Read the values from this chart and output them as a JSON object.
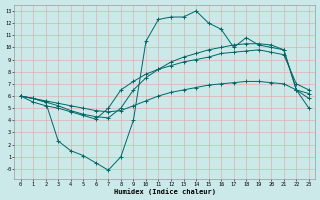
{
  "xlabel": "Humidex (Indice chaleur)",
  "background_color": "#cce9e9",
  "grid_color": "#e8a0a0",
  "line_color": "#006666",
  "xlim_min": -0.5,
  "xlim_max": 23.5,
  "ylim_min": -0.8,
  "ylim_max": 13.5,
  "xticks": [
    0,
    1,
    2,
    3,
    4,
    5,
    6,
    7,
    8,
    9,
    10,
    11,
    12,
    13,
    14,
    15,
    16,
    17,
    18,
    19,
    20,
    21,
    22,
    23
  ],
  "yticks": [
    0,
    1,
    2,
    3,
    4,
    5,
    6,
    7,
    8,
    9,
    10,
    11,
    12,
    13
  ],
  "ytick_labels": [
    "-0",
    "1",
    "2",
    "3",
    "4",
    "5",
    "6",
    "7",
    "8",
    "9",
    "10",
    "11",
    "12",
    "13"
  ],
  "line_dip_x": [
    0,
    1,
    2,
    3,
    4,
    5,
    6,
    7,
    8,
    9,
    10,
    11,
    12,
    13,
    14,
    15,
    16,
    17,
    18,
    19,
    20,
    21,
    22,
    23
  ],
  "line_dip_y": [
    6.0,
    5.8,
    5.5,
    2.3,
    1.5,
    1.1,
    0.5,
    -0.1,
    1.0,
    4.0,
    10.5,
    12.3,
    12.5,
    12.5,
    13.0,
    12.0,
    11.5,
    10.0,
    10.8,
    10.2,
    10.0,
    9.8,
    6.5,
    5.0
  ],
  "line_diag_x": [
    0,
    1,
    2,
    3,
    4,
    5,
    6,
    7,
    8,
    9,
    10,
    11,
    12,
    13,
    14,
    15,
    16,
    17,
    18,
    19,
    20,
    21,
    22,
    23
  ],
  "line_diag_y": [
    6.0,
    5.8,
    5.5,
    5.2,
    4.8,
    4.5,
    4.3,
    4.2,
    5.0,
    6.5,
    7.5,
    8.2,
    8.8,
    9.2,
    9.5,
    9.8,
    10.0,
    10.2,
    10.3,
    10.3,
    10.2,
    9.8,
    6.5,
    5.8
  ],
  "line_mid_x": [
    0,
    1,
    2,
    3,
    4,
    5,
    6,
    7,
    8,
    9,
    10,
    11,
    12,
    13,
    14,
    15,
    16,
    17,
    18,
    19,
    20,
    21,
    22,
    23
  ],
  "line_mid_y": [
    6.0,
    5.5,
    5.2,
    5.0,
    4.7,
    4.4,
    4.1,
    5.0,
    6.5,
    7.2,
    7.8,
    8.2,
    8.5,
    8.8,
    9.0,
    9.2,
    9.5,
    9.6,
    9.7,
    9.8,
    9.6,
    9.4,
    7.0,
    6.5
  ],
  "line_flat_x": [
    0,
    1,
    2,
    3,
    4,
    5,
    6,
    7,
    8,
    9,
    10,
    11,
    12,
    13,
    14,
    15,
    16,
    17,
    18,
    19,
    20,
    21,
    22,
    23
  ],
  "line_flat_y": [
    6.0,
    5.8,
    5.6,
    5.4,
    5.2,
    5.0,
    4.8,
    4.7,
    4.8,
    5.2,
    5.6,
    6.0,
    6.3,
    6.5,
    6.7,
    6.9,
    7.0,
    7.1,
    7.2,
    7.2,
    7.1,
    7.0,
    6.5,
    6.2
  ]
}
